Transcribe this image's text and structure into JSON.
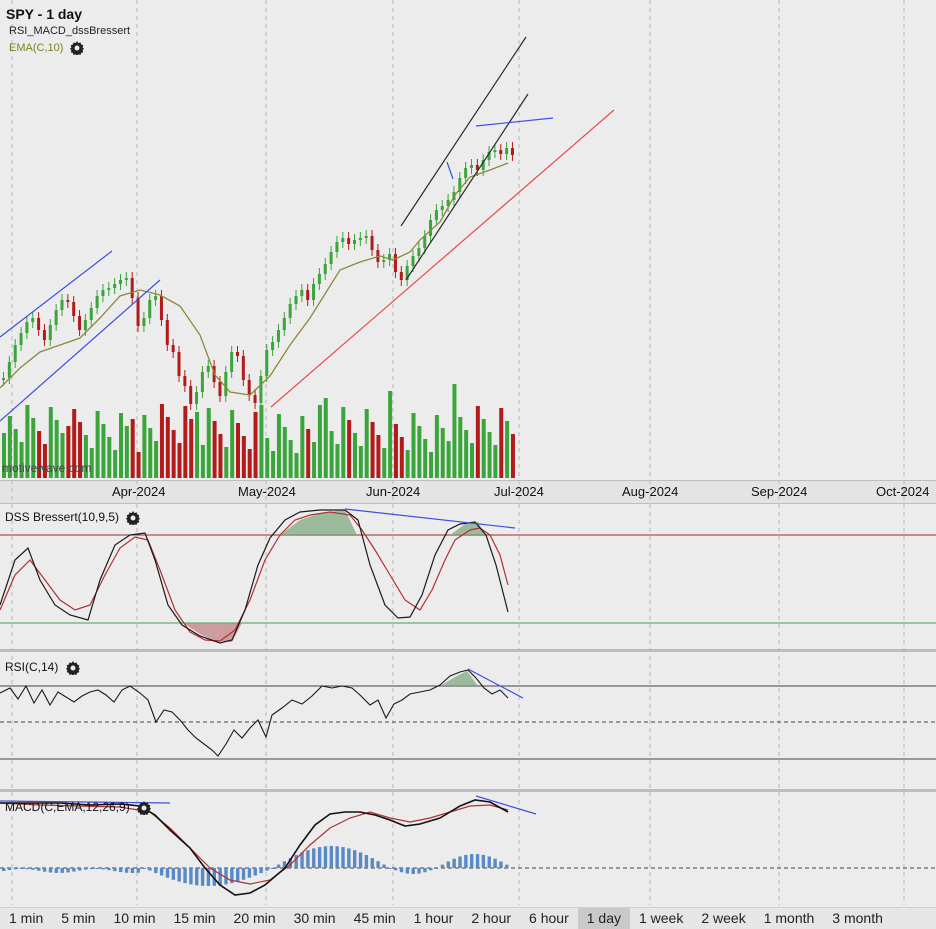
{
  "main_chart": {
    "title": "SPY - 1 day",
    "study_label": "RSI_MACD_dssBressert",
    "ema_label": "EMA(C,10)",
    "watermark": "motivewave.com",
    "colors": {
      "up": "#3aa53a",
      "down": "#b31b1b",
      "ema": "#8a8a3a",
      "channel": "#2b2b2b",
      "trend_blue": "#3b4fe0",
      "support_red": "#e84a4a"
    }
  },
  "x_axis": {
    "labels": [
      "Apr-2024",
      "May-2024",
      "Jun-2024",
      "Jul-2024",
      "Aug-2024",
      "Sep-2024",
      "Oct-2024"
    ]
  },
  "dss_panel": {
    "label": "DSS Bressert(10,9,5)"
  },
  "rsi_panel": {
    "label": "RSI(C,14)"
  },
  "macd_panel": {
    "label": "MACD(C,EMA,12,26,9)"
  },
  "timeframes": [
    {
      "label": "1 min",
      "active": false
    },
    {
      "label": "5 min",
      "active": false
    },
    {
      "label": "10 min",
      "active": false
    },
    {
      "label": "15 min",
      "active": false
    },
    {
      "label": "20 min",
      "active": false
    },
    {
      "label": "30 min",
      "active": false
    },
    {
      "label": "45 min",
      "active": false
    },
    {
      "label": "1 hour",
      "active": false
    },
    {
      "label": "2 hour",
      "active": false
    },
    {
      "label": "6 hour",
      "active": false
    },
    {
      "label": "1 day",
      "active": true
    },
    {
      "label": "1 week",
      "active": false
    },
    {
      "label": "2 week",
      "active": false
    },
    {
      "label": "1 month",
      "active": false
    },
    {
      "label": "3 month",
      "active": false
    }
  ]
}
